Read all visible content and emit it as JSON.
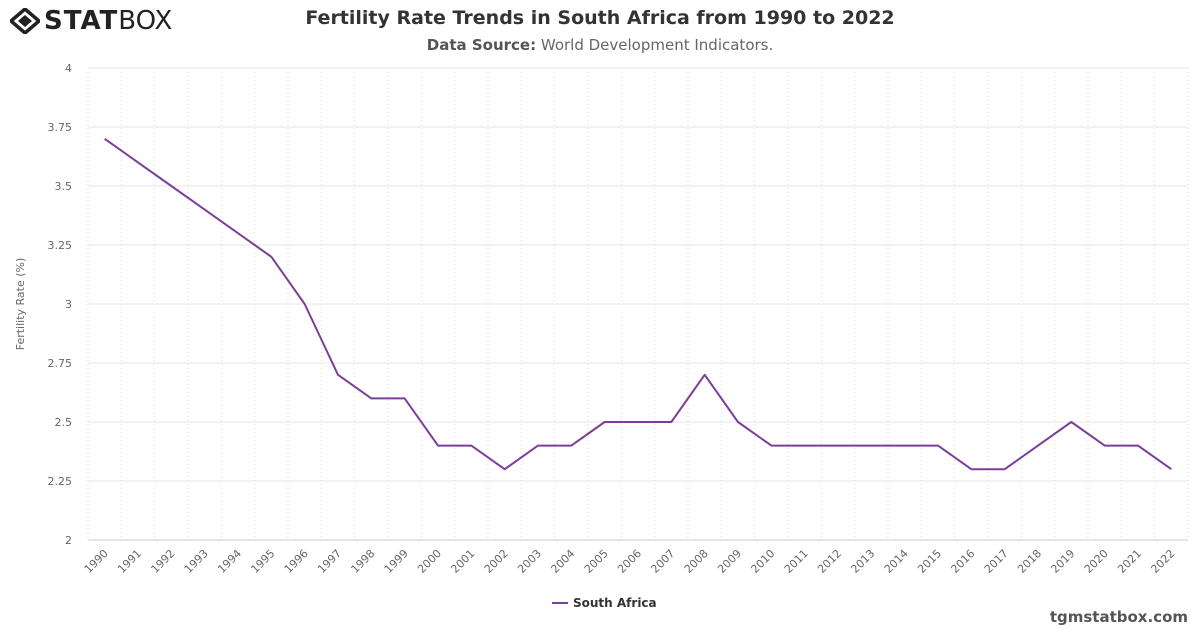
{
  "brand": {
    "logo_text_bold": "STAT",
    "logo_text_light": "BOX"
  },
  "header": {
    "title": "Fertility Rate Trends in South Africa from 1990 to 2022",
    "source_label": "Data Source:",
    "source_value": "World Development Indicators."
  },
  "footer": {
    "site": "tgmstatbox.com"
  },
  "chart_data": {
    "type": "line",
    "title": "Fertility Rate Trends in South Africa from 1990 to 2022",
    "xlabel": "",
    "ylabel": "Fertility Rate (%)",
    "ylim": [
      2,
      4
    ],
    "yticks": [
      "2",
      "2.25",
      "2.5",
      "2.75",
      "3",
      "3.25",
      "3.5",
      "3.75",
      "4"
    ],
    "categories": [
      "1990",
      "1991",
      "1992",
      "1993",
      "1994",
      "1995",
      "1996",
      "1997",
      "1998",
      "1999",
      "2000",
      "2001",
      "2002",
      "2003",
      "2004",
      "2005",
      "2006",
      "2007",
      "2008",
      "2009",
      "2010",
      "2011",
      "2012",
      "2013",
      "2014",
      "2015",
      "2016",
      "2017",
      "2018",
      "2019",
      "2020",
      "2021",
      "2022"
    ],
    "series": [
      {
        "name": "South Africa",
        "color": "#7b3f99",
        "values": [
          3.7,
          3.6,
          3.5,
          3.4,
          3.3,
          3.2,
          3.0,
          2.7,
          2.6,
          2.6,
          2.4,
          2.4,
          2.3,
          2.4,
          2.4,
          2.5,
          2.5,
          2.5,
          2.7,
          2.5,
          2.4,
          2.4,
          2.4,
          2.4,
          2.4,
          2.4,
          2.3,
          2.3,
          2.4,
          2.5,
          2.4,
          2.4,
          2.3
        ]
      }
    ],
    "grid": true,
    "legend": "bottom-center"
  }
}
